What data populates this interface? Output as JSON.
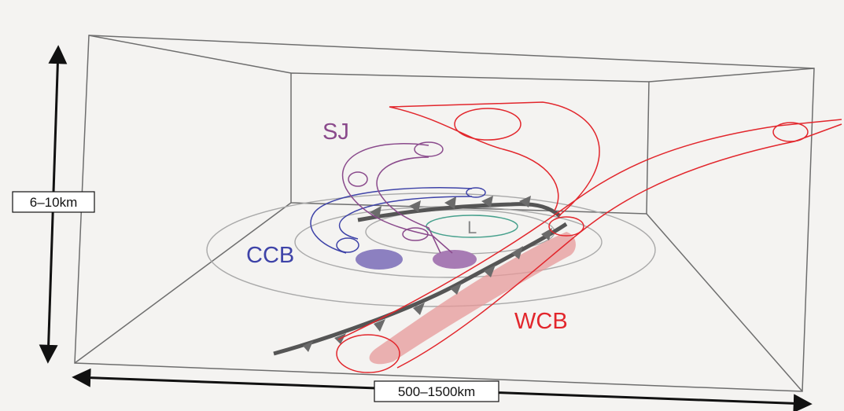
{
  "labels": {
    "sj": "SJ",
    "ccb": "CCB",
    "wcb": "WCB",
    "l": "L",
    "height": "6–10km",
    "width": "500–1500km"
  },
  "colors": {
    "background": "#f4f3f1",
    "box": "#6e6e6e",
    "sj": "#8a4a8c",
    "ccb": "#3e43a8",
    "wcb": "#e2262c",
    "wcb_fill": "#e79a9a",
    "ccb_fill": "#8c80c0",
    "sj_fill": "#a77bb4",
    "front": "#555555",
    "isobar": "#a9a9a9",
    "low_contour": "#46a08c"
  }
}
